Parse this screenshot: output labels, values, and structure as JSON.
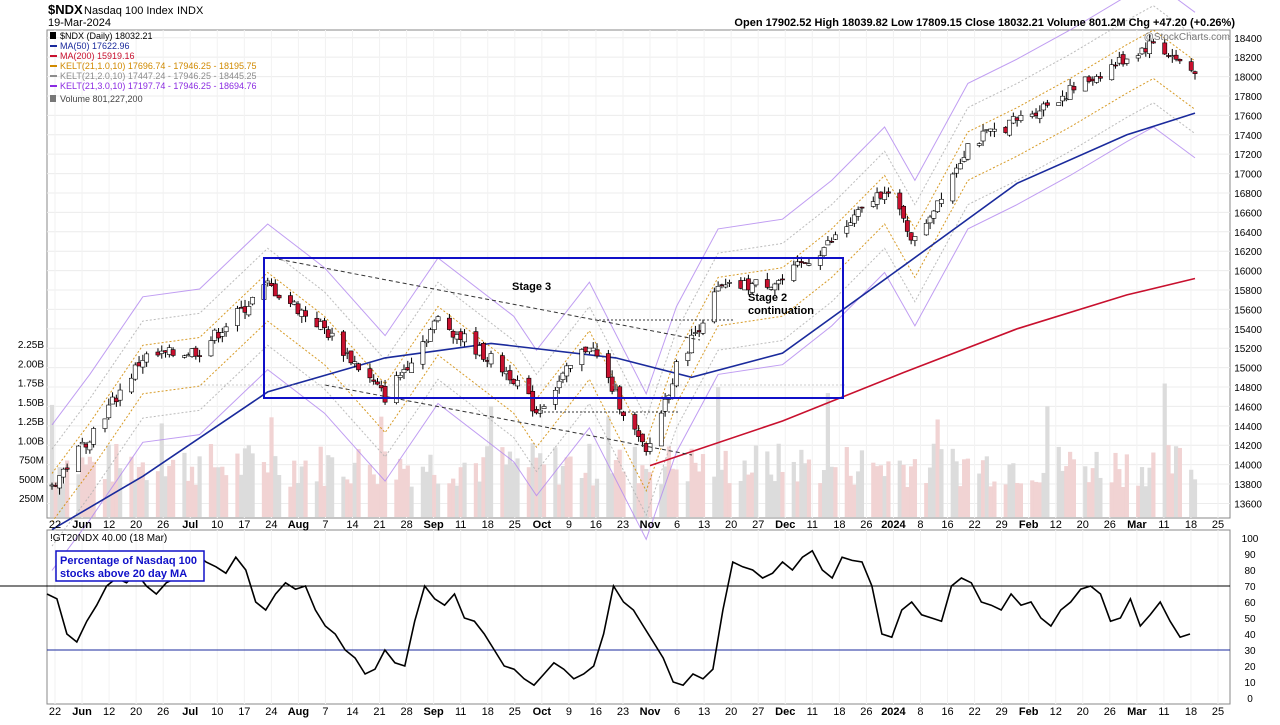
{
  "header": {
    "symbol": "$NDX",
    "name": "Nasdaq 100 Index",
    "exchange": "INDX",
    "date": "19-Mar-2024",
    "ohlc": "Open 17902.52  High 18039.82  Low 17809.15  Close 18032.21  Volume 801.2M  Chg +47.20 (+0.26%)",
    "source": "@StockCharts.com"
  },
  "legend": [
    {
      "text": "$NDX (Daily) 18032.21",
      "color": "#000000"
    },
    {
      "text": "MA(50) 17622.96",
      "color": "#1a2a9c"
    },
    {
      "text": "MA(200) 15919.16",
      "color": "#c8102e"
    },
    {
      "text": "KELT(21,1.0,10) 17696.74 - 17946.25 - 18195.75",
      "color": "#d08a00"
    },
    {
      "text": "KELT(21,2.0,10) 17447.24 - 17946.25 - 18445.25",
      "color": "#8c8c8c"
    },
    {
      "text": "KELT(21,3.0,10) 17197.74 - 17946.25 - 18694.76",
      "color": "#8a2be2"
    },
    {
      "text": "Volume 801,227,200",
      "color": "#444444"
    }
  ],
  "annotations": {
    "stage3": "Stage 3",
    "stage2_line1": "Stage 2",
    "stage2_line2": "continuation",
    "breadth_line1": "Percentage of Nasdaq 100",
    "breadth_line2": "stocks above 20 day MA"
  },
  "lower_panel": {
    "title": "!GT20NDX 40.00 (18 Mar)"
  },
  "chart_data": [
    {
      "type": "candlestick",
      "title": "$NDX Nasdaq 100 Index INDX",
      "y_ticks": [
        13600,
        13800,
        14000,
        14200,
        14400,
        14600,
        14800,
        15000,
        15200,
        15400,
        15600,
        15800,
        16000,
        16200,
        16400,
        16600,
        16800,
        17000,
        17200,
        17400,
        17600,
        17800,
        18000,
        18200,
        18400
      ],
      "ylim": [
        13450,
        18480
      ],
      "volume_ticks": [
        "250M",
        "500M",
        "750M",
        "1.00B",
        "1.25B",
        "1.50B",
        "1.75B",
        "2.00B",
        "2.25B"
      ],
      "x_ticks": [
        "22",
        "Jun",
        "12",
        "20",
        "26",
        "Jul",
        "10",
        "17",
        "24",
        "Aug",
        "7",
        "14",
        "21",
        "28",
        "Sep",
        "11",
        "18",
        "25",
        "Oct",
        "9",
        "16",
        "23",
        "Nov",
        "6",
        "13",
        "20",
        "27",
        "Dec",
        "11",
        "18",
        "26",
        "2024",
        "8",
        "16",
        "22",
        "29",
        "Feb",
        "12",
        "20",
        "26",
        "Mar",
        "11",
        "18",
        "25"
      ],
      "approx_closes": [
        {
          "date": "2023-05-22",
          "close": 13780
        },
        {
          "date": "2023-06-01",
          "close": 14300
        },
        {
          "date": "2023-06-15",
          "close": 15100
        },
        {
          "date": "2023-06-30",
          "close": 15180
        },
        {
          "date": "2023-07-18",
          "close": 15850
        },
        {
          "date": "2023-08-02",
          "close": 15400
        },
        {
          "date": "2023-08-18",
          "close": 14700
        },
        {
          "date": "2023-09-01",
          "close": 15500
        },
        {
          "date": "2023-09-21",
          "close": 14900
        },
        {
          "date": "2023-09-27",
          "close": 14550
        },
        {
          "date": "2023-10-11",
          "close": 15250
        },
        {
          "date": "2023-10-26",
          "close": 14100
        },
        {
          "date": "2023-11-03",
          "close": 15000
        },
        {
          "date": "2023-11-14",
          "close": 15800
        },
        {
          "date": "2023-12-01",
          "close": 15900
        },
        {
          "date": "2023-12-14",
          "close": 16300
        },
        {
          "date": "2023-12-28",
          "close": 16850
        },
        {
          "date": "2024-01-05",
          "close": 16300
        },
        {
          "date": "2024-01-19",
          "close": 17300
        },
        {
          "date": "2024-02-01",
          "close": 17550
        },
        {
          "date": "2024-02-15",
          "close": 17850
        },
        {
          "date": "2024-03-01",
          "close": 18200
        },
        {
          "date": "2024-03-08",
          "close": 18350
        },
        {
          "date": "2024-03-19",
          "close": 18032
        }
      ],
      "ma50": [
        {
          "date": "2023-05-22",
          "value": 13330
        },
        {
          "date": "2023-06-15",
          "value": 13880
        },
        {
          "date": "2023-07-18",
          "value": 14750
        },
        {
          "date": "2023-08-18",
          "value": 15100
        },
        {
          "date": "2023-09-15",
          "value": 15250
        },
        {
          "date": "2023-10-18",
          "value": 15100
        },
        {
          "date": "2023-11-07",
          "value": 14900
        },
        {
          "date": "2023-12-01",
          "value": 15150
        },
        {
          "date": "2024-01-02",
          "value": 16050
        },
        {
          "date": "2024-02-01",
          "value": 16900
        },
        {
          "date": "2024-03-01",
          "value": 17400
        },
        {
          "date": "2024-03-19",
          "value": 17623
        }
      ],
      "ma200": [
        {
          "date": "2023-10-27",
          "value": 13990
        },
        {
          "date": "2023-12-01",
          "value": 14450
        },
        {
          "date": "2024-01-02",
          "value": 14950
        },
        {
          "date": "2024-02-01",
          "value": 15400
        },
        {
          "date": "2024-03-01",
          "value": 15750
        },
        {
          "date": "2024-03-19",
          "value": 15919
        }
      ],
      "grid": true
    },
    {
      "type": "line",
      "title": "!GT20NDX 40.00 (18 Mar)",
      "series": [
        {
          "name": "!GT20NDX",
          "values": [
            65,
            62,
            40,
            35,
            48,
            58,
            70,
            75,
            72,
            78,
            70,
            65,
            72,
            75,
            80,
            90,
            85,
            82,
            78,
            88,
            80,
            60,
            55,
            65,
            72,
            68,
            70,
            55,
            45,
            40,
            30,
            25,
            15,
            18,
            30,
            22,
            20,
            48,
            70,
            62,
            58,
            65,
            50,
            48,
            40,
            30,
            20,
            18,
            12,
            8,
            15,
            22,
            18,
            12,
            15,
            20,
            40,
            70,
            60,
            55,
            45,
            35,
            25,
            10,
            8,
            15,
            12,
            18,
            55,
            85,
            82,
            80,
            75,
            78,
            85,
            80,
            88,
            92,
            80,
            75,
            88,
            86,
            85,
            70,
            40,
            38,
            55,
            60,
            52,
            50,
            48,
            70,
            75,
            72,
            60,
            58,
            55,
            65,
            58,
            60,
            50,
            45,
            55,
            60,
            68,
            70,
            65,
            48,
            50,
            62,
            45,
            52,
            60,
            48,
            38,
            40
          ]
        }
      ],
      "ylim": [
        0,
        100
      ],
      "y_ticks": [
        0,
        10,
        20,
        30,
        40,
        50,
        60,
        70,
        80,
        90,
        100
      ],
      "reference_lines": [
        30,
        70
      ],
      "grid": true
    }
  ]
}
